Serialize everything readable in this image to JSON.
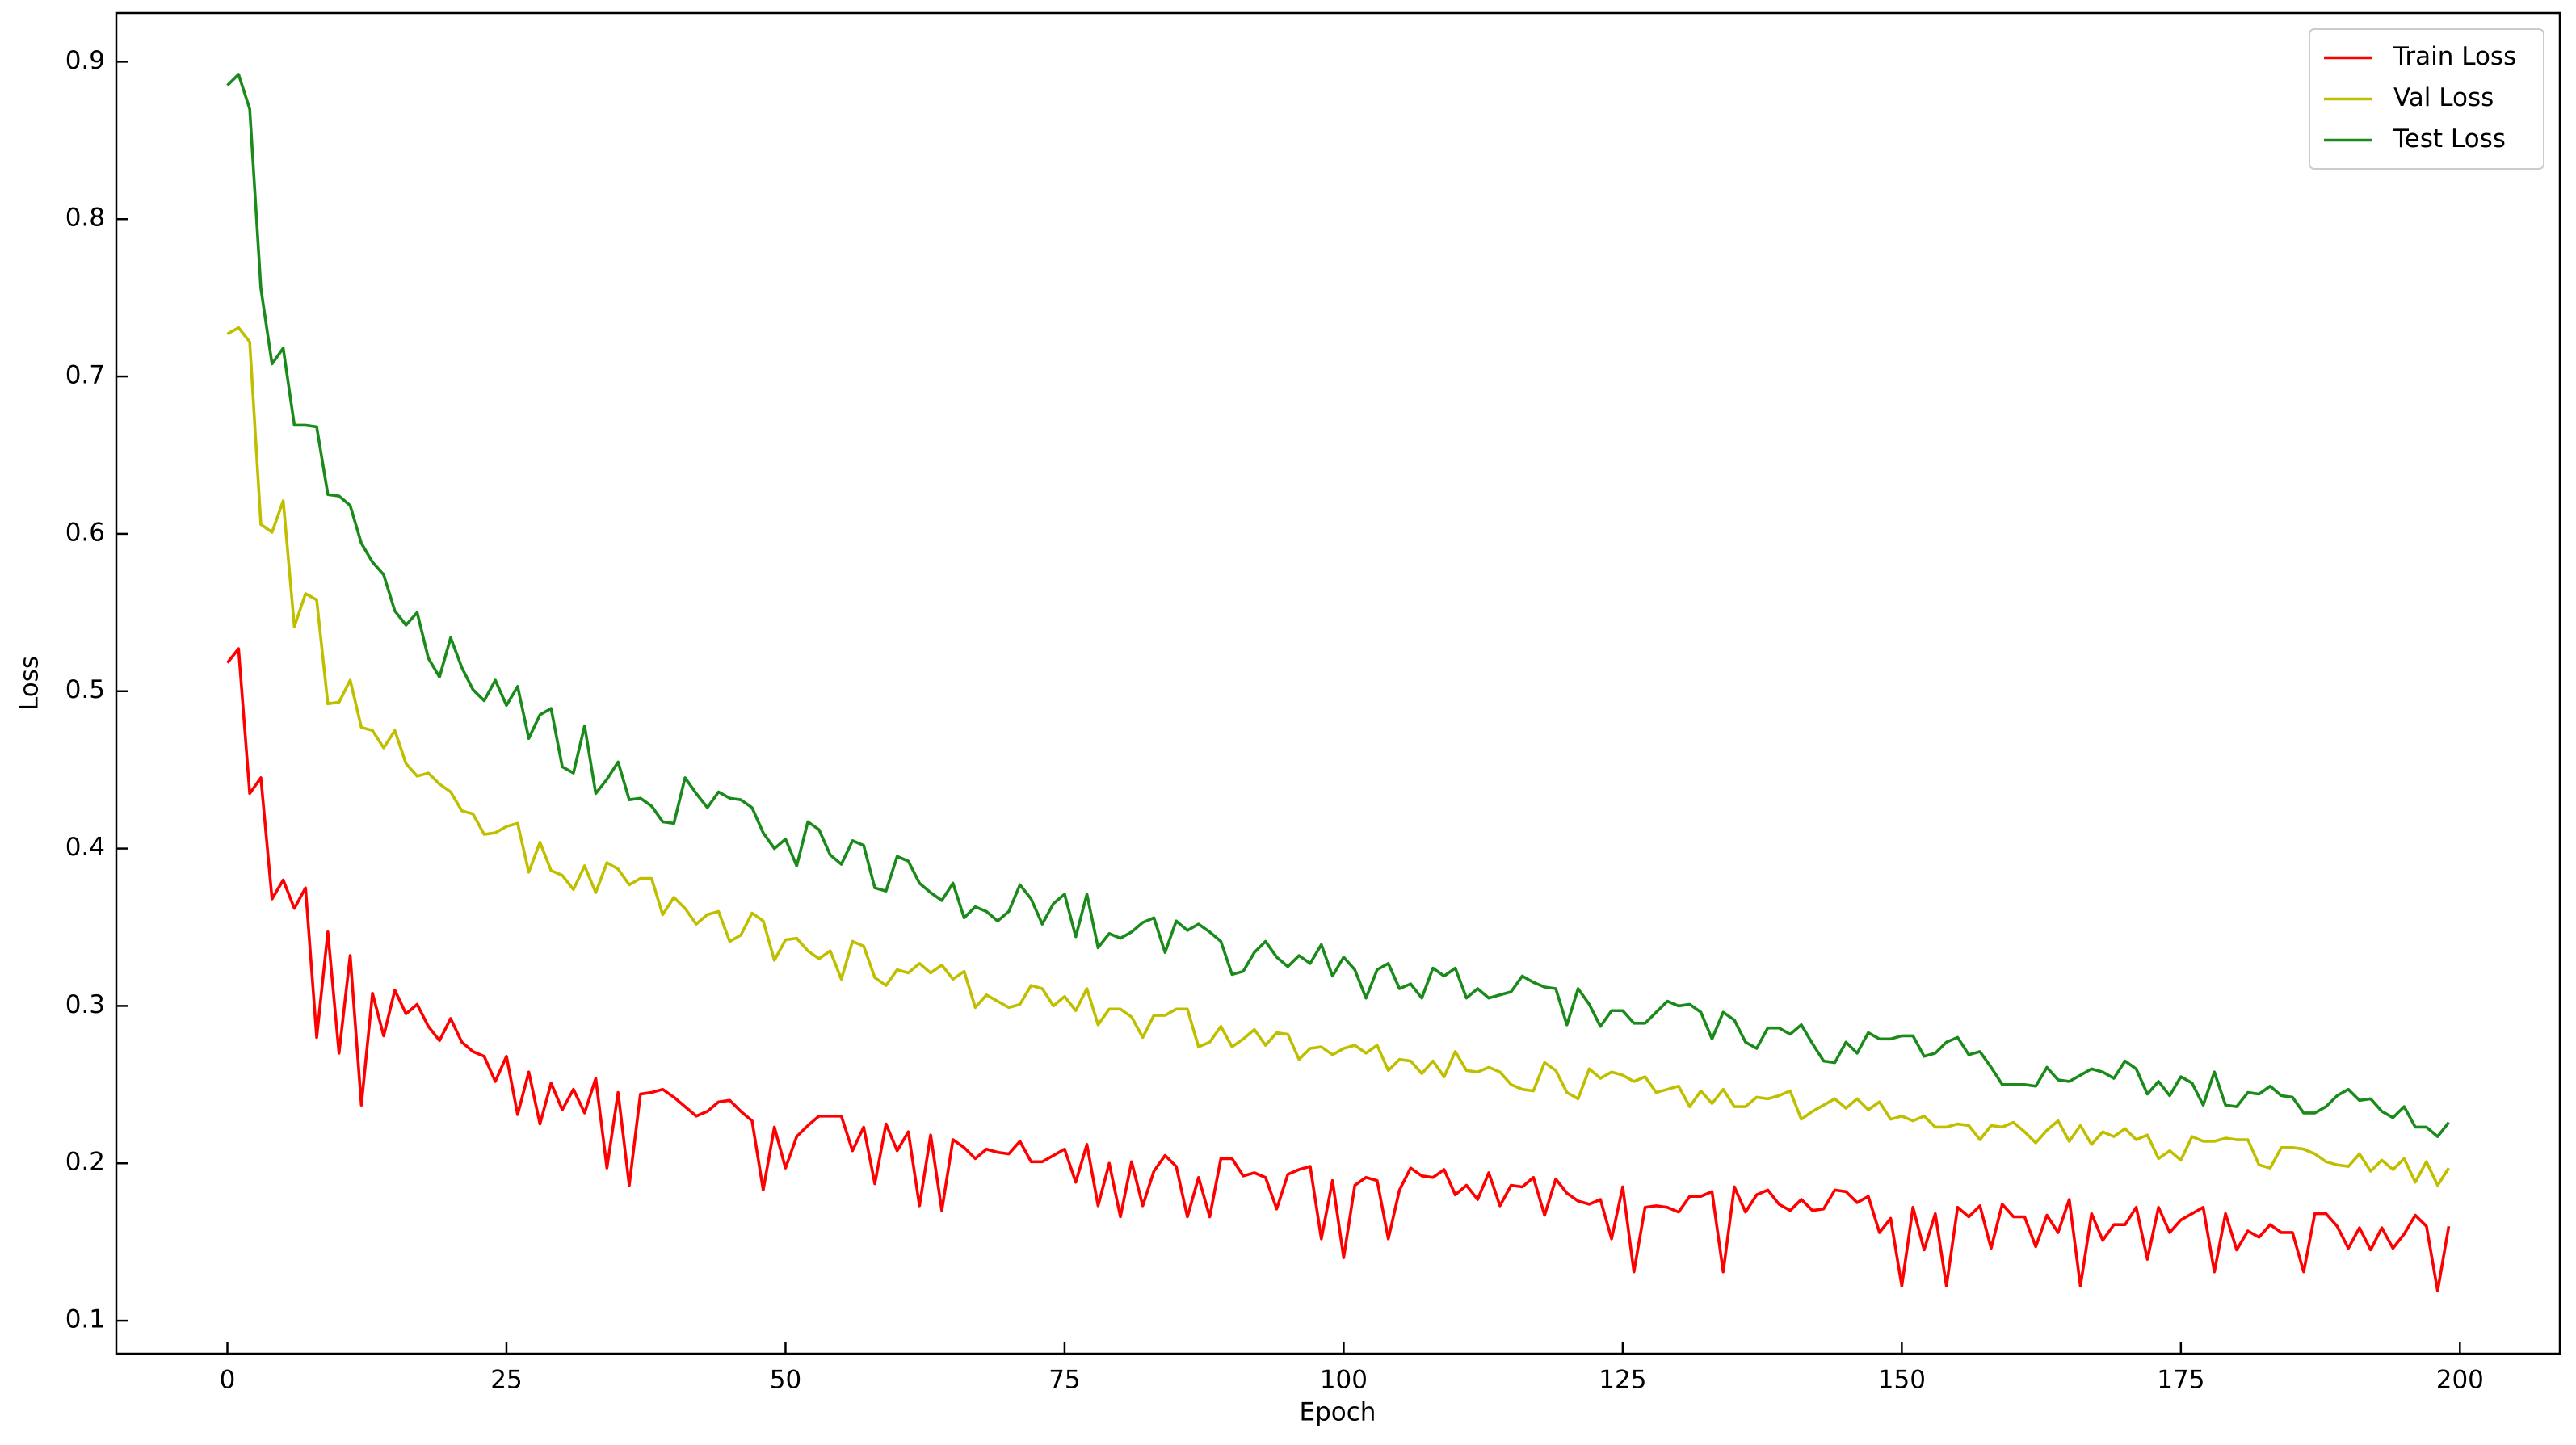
{
  "chart_data": {
    "type": "line",
    "xlabel": "Epoch",
    "ylabel": "Loss",
    "x": [
      0,
      1,
      2,
      3,
      4,
      5,
      6,
      7,
      8,
      9,
      10,
      11,
      12,
      13,
      14,
      15,
      16,
      17,
      18,
      19,
      20,
      21,
      22,
      23,
      24,
      25,
      26,
      27,
      28,
      29,
      30,
      31,
      32,
      33,
      34,
      35,
      36,
      37,
      38,
      39,
      40,
      41,
      42,
      43,
      44,
      45,
      46,
      47,
      48,
      49,
      50,
      51,
      52,
      53,
      54,
      55,
      56,
      57,
      58,
      59,
      60,
      61,
      62,
      63,
      64,
      65,
      66,
      67,
      68,
      69,
      70,
      71,
      72,
      73,
      74,
      75,
      76,
      77,
      78,
      79,
      80,
      81,
      82,
      83,
      84,
      85,
      86,
      87,
      88,
      89,
      90,
      91,
      92,
      93,
      94,
      95,
      96,
      97,
      98,
      99,
      100,
      101,
      102,
      103,
      104,
      105,
      106,
      107,
      108,
      109,
      110,
      111,
      112,
      113,
      114,
      115,
      116,
      117,
      118,
      119,
      120,
      121,
      122,
      123,
      124,
      125,
      126,
      127,
      128,
      129,
      130,
      131,
      132,
      133,
      134,
      135,
      136,
      137,
      138,
      139,
      140,
      141,
      142,
      143,
      144,
      145,
      146,
      147,
      148,
      149,
      150,
      151,
      152,
      153,
      154,
      155,
      156,
      157,
      158,
      159,
      160,
      161,
      162,
      163,
      164,
      165,
      166,
      167,
      168,
      169,
      170,
      171,
      172,
      173,
      174,
      175,
      176,
      177,
      178,
      179,
      180,
      181,
      182,
      183,
      184,
      185,
      186,
      187,
      188,
      189,
      190,
      191,
      192,
      193,
      194,
      195,
      196,
      197,
      198,
      199
    ],
    "series": [
      {
        "name": "Train Loss",
        "color": "#ff0000",
        "values": [
          0.518,
          0.527,
          0.435,
          0.445,
          0.368,
          0.38,
          0.362,
          0.375,
          0.28,
          0.347,
          0.27,
          0.332,
          0.237,
          0.308,
          0.281,
          0.31,
          0.295,
          0.301,
          0.287,
          0.278,
          0.292,
          0.277,
          0.271,
          0.268,
          0.252,
          0.268,
          0.231,
          0.258,
          0.225,
          0.251,
          0.234,
          0.247,
          0.232,
          0.254,
          0.197,
          0.245,
          0.186,
          0.244,
          0.245,
          0.247,
          0.242,
          0.236,
          0.23,
          0.233,
          0.239,
          0.24,
          0.233,
          0.227,
          0.183,
          0.223,
          0.197,
          0.217,
          0.224,
          0.23,
          0.23,
          0.23,
          0.208,
          0.223,
          0.187,
          0.225,
          0.208,
          0.22,
          0.173,
          0.218,
          0.17,
          0.215,
          0.21,
          0.203,
          0.209,
          0.207,
          0.206,
          0.214,
          0.201,
          0.201,
          0.205,
          0.209,
          0.188,
          0.212,
          0.173,
          0.2,
          0.166,
          0.201,
          0.173,
          0.195,
          0.205,
          0.198,
          0.166,
          0.191,
          0.166,
          0.203,
          0.203,
          0.192,
          0.194,
          0.191,
          0.171,
          0.193,
          0.196,
          0.198,
          0.152,
          0.189,
          0.14,
          0.186,
          0.191,
          0.189,
          0.152,
          0.183,
          0.197,
          0.192,
          0.191,
          0.196,
          0.18,
          0.186,
          0.177,
          0.194,
          0.173,
          0.186,
          0.185,
          0.191,
          0.167,
          0.19,
          0.181,
          0.176,
          0.174,
          0.177,
          0.152,
          0.185,
          0.131,
          0.172,
          0.173,
          0.172,
          0.169,
          0.179,
          0.179,
          0.182,
          0.131,
          0.185,
          0.169,
          0.18,
          0.183,
          0.174,
          0.17,
          0.177,
          0.17,
          0.171,
          0.183,
          0.182,
          0.175,
          0.179,
          0.156,
          0.165,
          0.122,
          0.172,
          0.145,
          0.168,
          0.122,
          0.172,
          0.166,
          0.173,
          0.146,
          0.174,
          0.166,
          0.166,
          0.147,
          0.167,
          0.156,
          0.177,
          0.122,
          0.168,
          0.151,
          0.161,
          0.161,
          0.172,
          0.139,
          0.172,
          0.156,
          0.164,
          0.168,
          0.172,
          0.131,
          0.168,
          0.145,
          0.157,
          0.153,
          0.161,
          0.156,
          0.156,
          0.131,
          0.168,
          0.168,
          0.16,
          0.146,
          0.159,
          0.145,
          0.159,
          0.146,
          0.155,
          0.167,
          0.16,
          0.119,
          0.16
        ]
      },
      {
        "name": "Val Loss",
        "color": "#bfbf00",
        "values": [
          0.727,
          0.731,
          0.722,
          0.606,
          0.601,
          0.621,
          0.541,
          0.562,
          0.558,
          0.492,
          0.493,
          0.507,
          0.477,
          0.475,
          0.464,
          0.475,
          0.454,
          0.446,
          0.448,
          0.441,
          0.436,
          0.424,
          0.422,
          0.409,
          0.41,
          0.414,
          0.416,
          0.385,
          0.404,
          0.386,
          0.383,
          0.374,
          0.389,
          0.372,
          0.391,
          0.387,
          0.377,
          0.381,
          0.381,
          0.358,
          0.369,
          0.362,
          0.352,
          0.358,
          0.36,
          0.341,
          0.345,
          0.359,
          0.354,
          0.329,
          0.342,
          0.343,
          0.335,
          0.33,
          0.335,
          0.317,
          0.341,
          0.338,
          0.318,
          0.313,
          0.323,
          0.321,
          0.327,
          0.321,
          0.326,
          0.317,
          0.322,
          0.299,
          0.307,
          0.303,
          0.299,
          0.301,
          0.313,
          0.311,
          0.3,
          0.306,
          0.297,
          0.311,
          0.288,
          0.298,
          0.298,
          0.293,
          0.28,
          0.294,
          0.294,
          0.298,
          0.298,
          0.274,
          0.277,
          0.287,
          0.274,
          0.279,
          0.285,
          0.275,
          0.283,
          0.282,
          0.266,
          0.273,
          0.274,
          0.269,
          0.273,
          0.275,
          0.27,
          0.275,
          0.259,
          0.266,
          0.265,
          0.257,
          0.265,
          0.255,
          0.271,
          0.259,
          0.258,
          0.261,
          0.258,
          0.25,
          0.247,
          0.246,
          0.264,
          0.259,
          0.245,
          0.241,
          0.26,
          0.254,
          0.258,
          0.256,
          0.252,
          0.255,
          0.245,
          0.247,
          0.249,
          0.236,
          0.246,
          0.238,
          0.247,
          0.236,
          0.236,
          0.242,
          0.241,
          0.243,
          0.246,
          0.228,
          0.233,
          0.237,
          0.241,
          0.235,
          0.241,
          0.234,
          0.239,
          0.228,
          0.23,
          0.227,
          0.23,
          0.223,
          0.223,
          0.225,
          0.224,
          0.215,
          0.224,
          0.223,
          0.226,
          0.22,
          0.213,
          0.221,
          0.227,
          0.214,
          0.224,
          0.212,
          0.22,
          0.217,
          0.222,
          0.215,
          0.218,
          0.203,
          0.208,
          0.202,
          0.217,
          0.214,
          0.214,
          0.216,
          0.215,
          0.215,
          0.199,
          0.197,
          0.21,
          0.21,
          0.209,
          0.206,
          0.201,
          0.199,
          0.198,
          0.206,
          0.195,
          0.202,
          0.196,
          0.203,
          0.188,
          0.201,
          0.186,
          0.197
        ]
      },
      {
        "name": "Test Loss",
        "color": "#1a8a1a",
        "values": [
          0.885,
          0.892,
          0.87,
          0.756,
          0.708,
          0.718,
          0.669,
          0.669,
          0.668,
          0.625,
          0.624,
          0.618,
          0.594,
          0.582,
          0.574,
          0.551,
          0.542,
          0.55,
          0.521,
          0.509,
          0.534,
          0.515,
          0.501,
          0.494,
          0.507,
          0.491,
          0.503,
          0.47,
          0.485,
          0.489,
          0.452,
          0.448,
          0.478,
          0.435,
          0.444,
          0.455,
          0.431,
          0.432,
          0.427,
          0.417,
          0.416,
          0.445,
          0.435,
          0.426,
          0.436,
          0.432,
          0.431,
          0.426,
          0.41,
          0.4,
          0.406,
          0.389,
          0.417,
          0.412,
          0.396,
          0.39,
          0.405,
          0.402,
          0.375,
          0.373,
          0.395,
          0.392,
          0.378,
          0.372,
          0.367,
          0.378,
          0.356,
          0.363,
          0.36,
          0.354,
          0.36,
          0.377,
          0.368,
          0.352,
          0.365,
          0.371,
          0.344,
          0.371,
          0.337,
          0.346,
          0.343,
          0.347,
          0.353,
          0.356,
          0.334,
          0.354,
          0.348,
          0.352,
          0.347,
          0.341,
          0.32,
          0.322,
          0.334,
          0.341,
          0.331,
          0.325,
          0.332,
          0.327,
          0.339,
          0.319,
          0.331,
          0.323,
          0.305,
          0.323,
          0.327,
          0.311,
          0.314,
          0.305,
          0.324,
          0.319,
          0.324,
          0.305,
          0.311,
          0.305,
          0.307,
          0.309,
          0.319,
          0.315,
          0.312,
          0.311,
          0.288,
          0.311,
          0.301,
          0.287,
          0.297,
          0.297,
          0.289,
          0.289,
          0.296,
          0.303,
          0.3,
          0.301,
          0.296,
          0.279,
          0.296,
          0.291,
          0.277,
          0.273,
          0.286,
          0.286,
          0.282,
          0.288,
          0.276,
          0.265,
          0.264,
          0.277,
          0.27,
          0.283,
          0.279,
          0.279,
          0.281,
          0.281,
          0.268,
          0.27,
          0.277,
          0.28,
          0.269,
          0.271,
          0.261,
          0.25,
          0.25,
          0.25,
          0.249,
          0.261,
          0.253,
          0.252,
          0.256,
          0.26,
          0.258,
          0.254,
          0.265,
          0.26,
          0.244,
          0.252,
          0.243,
          0.255,
          0.251,
          0.237,
          0.258,
          0.237,
          0.236,
          0.245,
          0.244,
          0.249,
          0.243,
          0.242,
          0.232,
          0.232,
          0.236,
          0.243,
          0.247,
          0.24,
          0.241,
          0.233,
          0.229,
          0.236,
          0.223,
          0.223,
          0.217,
          0.226
        ]
      }
    ],
    "xlim": [
      -9.95,
      208.95
    ],
    "xticks": [
      0,
      25,
      50,
      75,
      100,
      125,
      150,
      175,
      200
    ],
    "ylim": [
      0.079,
      0.931
    ],
    "yticks": [
      0.1,
      0.2,
      0.3,
      0.4,
      0.5,
      0.6,
      0.7,
      0.8,
      0.9
    ],
    "legend": "upper right",
    "grid": false
  }
}
